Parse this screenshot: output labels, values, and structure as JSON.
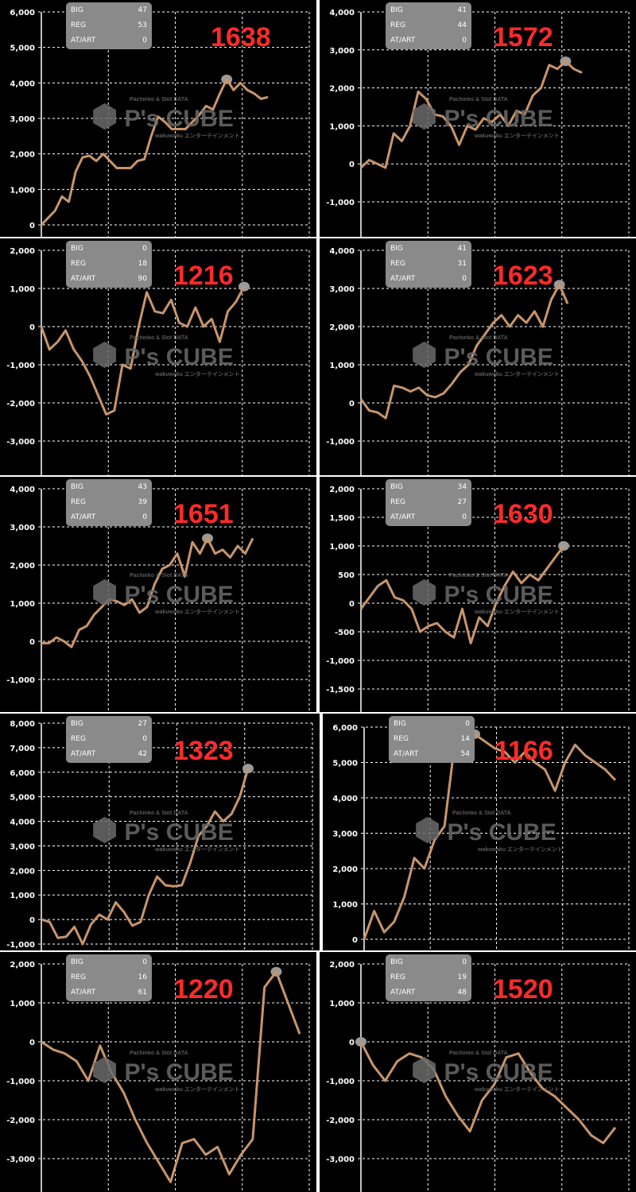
{
  "colors": {
    "line": "#c8956b",
    "grid": "#ffffff",
    "background": "#000000",
    "number": "#ff2a2a",
    "stats_box": "#8a8a8a",
    "peak_marker": "#9a9a9a"
  },
  "watermark": {
    "logo": "P's CUBE",
    "tagline": "Pachinko & Slot DATA",
    "company": "wakuwaku エンターテインメント"
  },
  "stat_labels": [
    "BIG",
    "REG",
    "AT/ART"
  ],
  "chart_data": [
    {
      "type": "line",
      "number": "1638",
      "stats": {
        "BIG": "47",
        "REG": "53",
        "AT/ART": "0"
      },
      "yticks": [
        "6,000",
        "5,000",
        "4,000",
        "3,000",
        "2,000",
        "1,000",
        "0"
      ],
      "ylim": [
        0,
        6000
      ],
      "grid": true,
      "values": [
        0,
        200,
        400,
        800,
        650,
        1500,
        1900,
        1950,
        1800,
        2000,
        1800,
        1600,
        1600,
        1600,
        1800,
        1850,
        2500,
        3050,
        2900,
        2700,
        2700,
        2700,
        2900,
        3100,
        3350,
        3250,
        3700,
        4100,
        3800,
        4000,
        3800,
        3700,
        3550,
        3600
      ]
    },
    {
      "type": "line",
      "number": "1572",
      "stats": {
        "BIG": "41",
        "REG": "44",
        "AT/ART": "0"
      },
      "yticks": [
        "4,000",
        "3,000",
        "2,000",
        "1,000",
        "0",
        "-1,000"
      ],
      "ylim": [
        -1000,
        4000
      ],
      "grid": true,
      "values": [
        -100,
        100,
        0,
        -100,
        800,
        600,
        1000,
        1900,
        1700,
        1300,
        1250,
        1000,
        500,
        1000,
        900,
        1200,
        1100,
        1300,
        1000,
        1400,
        1300,
        1800,
        2000,
        2600,
        2500,
        2700,
        2500,
        2400
      ]
    },
    {
      "type": "line",
      "number": "1216",
      "stats": {
        "BIG": "0",
        "REG": "18",
        "AT/ART": "90"
      },
      "yticks": [
        "2,000",
        "1,000",
        "0",
        "-1,000",
        "-2,000",
        "-3,000"
      ],
      "ylim": [
        -3000,
        2000
      ],
      "grid": true,
      "values": [
        0,
        -600,
        -400,
        -100,
        -600,
        -900,
        -1300,
        -1800,
        -2300,
        -2200,
        -1000,
        -1100,
        0,
        900,
        400,
        350,
        700,
        100,
        0,
        500,
        0,
        200,
        -400,
        400,
        650,
        1050
      ]
    },
    {
      "type": "line",
      "number": "1623",
      "stats": {
        "BIG": "41",
        "REG": "31",
        "AT/ART": "0"
      },
      "yticks": [
        "4,000",
        "3,000",
        "2,000",
        "1,000",
        "0",
        "-1,000"
      ],
      "ylim": [
        -1000,
        4000
      ],
      "grid": true,
      "values": [
        100,
        -200,
        -250,
        -400,
        450,
        400,
        300,
        400,
        200,
        150,
        250,
        500,
        800,
        1000,
        1500,
        1800,
        2100,
        2300,
        2000,
        2300,
        2100,
        2400,
        2000,
        2700,
        3100,
        2600
      ]
    },
    {
      "type": "line",
      "number": "1651",
      "stats": {
        "BIG": "43",
        "REG": "39",
        "AT/ART": "0"
      },
      "yticks": [
        "4,000",
        "3,000",
        "2,000",
        "1,000",
        "0",
        "-1,000"
      ],
      "ylim": [
        -1000,
        4000
      ],
      "grid": true,
      "values": [
        -50,
        -50,
        100,
        0,
        -150,
        300,
        400,
        700,
        900,
        1100,
        1050,
        950,
        1100,
        750,
        900,
        1500,
        1900,
        2000,
        2300,
        1700,
        2600,
        2300,
        2700,
        2300,
        2400,
        2200,
        2500,
        2300,
        2700
      ]
    },
    {
      "type": "line",
      "number": "1630",
      "stats": {
        "BIG": "34",
        "REG": "27",
        "AT/ART": "0"
      },
      "yticks": [
        "2,000",
        "1,500",
        "1,000",
        "500",
        "0",
        "-500",
        "-1,000",
        "-1,500"
      ],
      "ylim": [
        -1500,
        2000
      ],
      "grid": true,
      "values": [
        -100,
        100,
        300,
        400,
        100,
        50,
        -100,
        -500,
        -400,
        -350,
        -500,
        -600,
        -100,
        -700,
        -250,
        -400,
        0,
        300,
        550,
        350,
        500,
        400,
        600,
        800,
        1000
      ]
    },
    {
      "type": "line",
      "number": "1323",
      "stats": {
        "BIG": "27",
        "REG": "0",
        "AT/ART": "42"
      },
      "yticks": [
        "8,000",
        "7,000",
        "6,000",
        "5,000",
        "4,000",
        "3,000",
        "2,000",
        "1,000",
        "0",
        "-1,000"
      ],
      "ylim": [
        -1000,
        8000
      ],
      "grid": true,
      "values": [
        0,
        -100,
        -750,
        -700,
        -300,
        -1000,
        -200,
        200,
        0,
        700,
        300,
        -250,
        -100,
        1000,
        1750,
        1400,
        1350,
        1400,
        2300,
        3400,
        3800,
        4400,
        4000,
        4300,
        5000,
        6150
      ]
    },
    {
      "type": "line",
      "number": "1166",
      "stats": {
        "BIG": "0",
        "REG": "14",
        "AT/ART": "54"
      },
      "yticks": [
        "6,000",
        "5,000",
        "4,000",
        "3,000",
        "2,000",
        "1,000",
        "0"
      ],
      "ylim": [
        0,
        6000
      ],
      "grid": true,
      "values": [
        0,
        800,
        200,
        500,
        1200,
        2300,
        2000,
        2800,
        3200,
        5500,
        5300,
        5800,
        5600,
        5400,
        5300,
        5000,
        5300,
        5000,
        4800,
        4200,
        5000,
        5500,
        5200,
        5000,
        4800,
        4500
      ]
    },
    {
      "type": "line",
      "number": "1220",
      "stats": {
        "BIG": "0",
        "REG": "16",
        "AT/ART": "61"
      },
      "yticks": [
        "2,000",
        "1,000",
        "0",
        "-1,000",
        "-2,000",
        "-3,000"
      ],
      "ylim": [
        -3000,
        2000
      ],
      "grid": true,
      "values": [
        0,
        -200,
        -300,
        -500,
        -1000,
        -100,
        -800,
        -1300,
        -2000,
        -2600,
        -3100,
        -3600,
        -2600,
        -2500,
        -2900,
        -2700,
        -3400,
        -2900,
        -2500,
        1400,
        1800,
        1000,
        200
      ]
    },
    {
      "type": "line",
      "number": "1520",
      "stats": {
        "BIG": "0",
        "REG": "19",
        "AT/ART": "48"
      },
      "yticks": [
        "2,000",
        "1,000",
        "0",
        "-1,000",
        "-2,000",
        "-3,000"
      ],
      "ylim": [
        -3000,
        2000
      ],
      "grid": true,
      "values": [
        0,
        -600,
        -1000,
        -500,
        -300,
        -400,
        -700,
        -1400,
        -1900,
        -2300,
        -1500,
        -1100,
        -400,
        -300,
        -800,
        -1200,
        -1400,
        -1700,
        -2000,
        -2400,
        -2600,
        -2200
      ]
    }
  ]
}
